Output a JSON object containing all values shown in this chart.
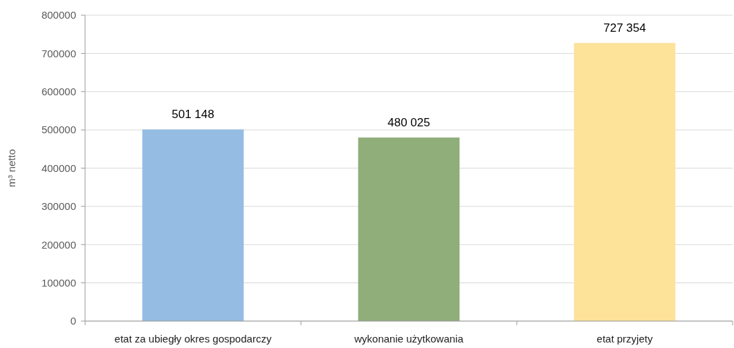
{
  "chart_data": {
    "type": "bar",
    "ylabel": "m³ netto",
    "categories": [
      "etat za ubiegły okres gospodarczy",
      "wykonanie użytkowania",
      "etat przyjety"
    ],
    "values": [
      501148,
      480025,
      727354
    ],
    "colors": [
      "#95bde3",
      "#8fae7a",
      "#fde29a"
    ],
    "value_labels": [
      "501 148",
      "480  025",
      "727 354"
    ],
    "ylim": [
      0,
      800000
    ],
    "yticks": [
      0,
      100000,
      200000,
      300000,
      400000,
      500000,
      600000,
      700000,
      800000
    ],
    "grid": "y"
  }
}
